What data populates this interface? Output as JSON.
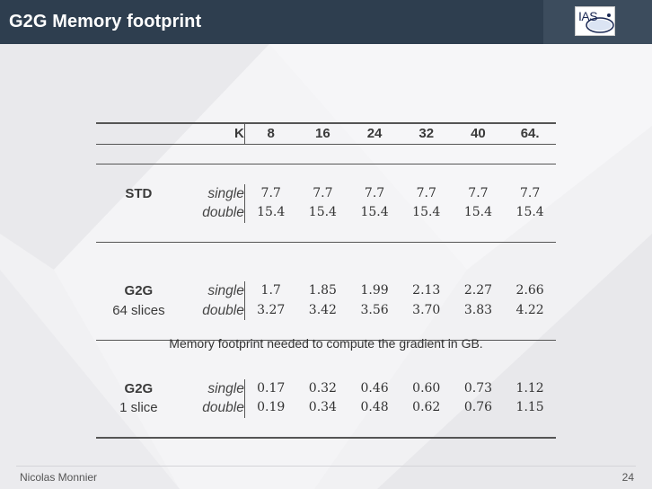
{
  "slide": {
    "title": "G2G Memory footprint",
    "logo_text": "IAS"
  },
  "table": {
    "k_label": "K",
    "k_values": [
      "8",
      "16",
      "24",
      "32",
      "40",
      "64."
    ],
    "groups": [
      {
        "name": "STD",
        "name2": "",
        "rows": [
          {
            "precision": "single",
            "values": [
              "7.7",
              "7.7",
              "7.7",
              "7.7",
              "7.7",
              "7.7"
            ]
          },
          {
            "precision": "double",
            "values": [
              "15.4",
              "15.4",
              "15.4",
              "15.4",
              "15.4",
              "15.4"
            ]
          }
        ]
      },
      {
        "name": "G2G",
        "name2": "64 slices",
        "rows": [
          {
            "precision": "single",
            "values": [
              "1.7",
              "1.85",
              "1.99",
              "2.13",
              "2.27",
              "2.66"
            ]
          },
          {
            "precision": "double",
            "values": [
              "3.27",
              "3.42",
              "3.56",
              "3.70",
              "3.83",
              "4.22"
            ]
          }
        ]
      },
      {
        "name": "G2G",
        "name2": "1 slice",
        "rows": [
          {
            "precision": "single",
            "values": [
              "0.17",
              "0.32",
              "0.46",
              "0.60",
              "0.73",
              "1.12"
            ]
          },
          {
            "precision": "double",
            "values": [
              "0.19",
              "0.34",
              "0.48",
              "0.62",
              "0.76",
              "1.15"
            ]
          }
        ]
      }
    ]
  },
  "caption": "Memory footprint needed to compute the gradient in GB.",
  "footer": {
    "author": "Nicolas Monnier",
    "page_number": "24"
  }
}
